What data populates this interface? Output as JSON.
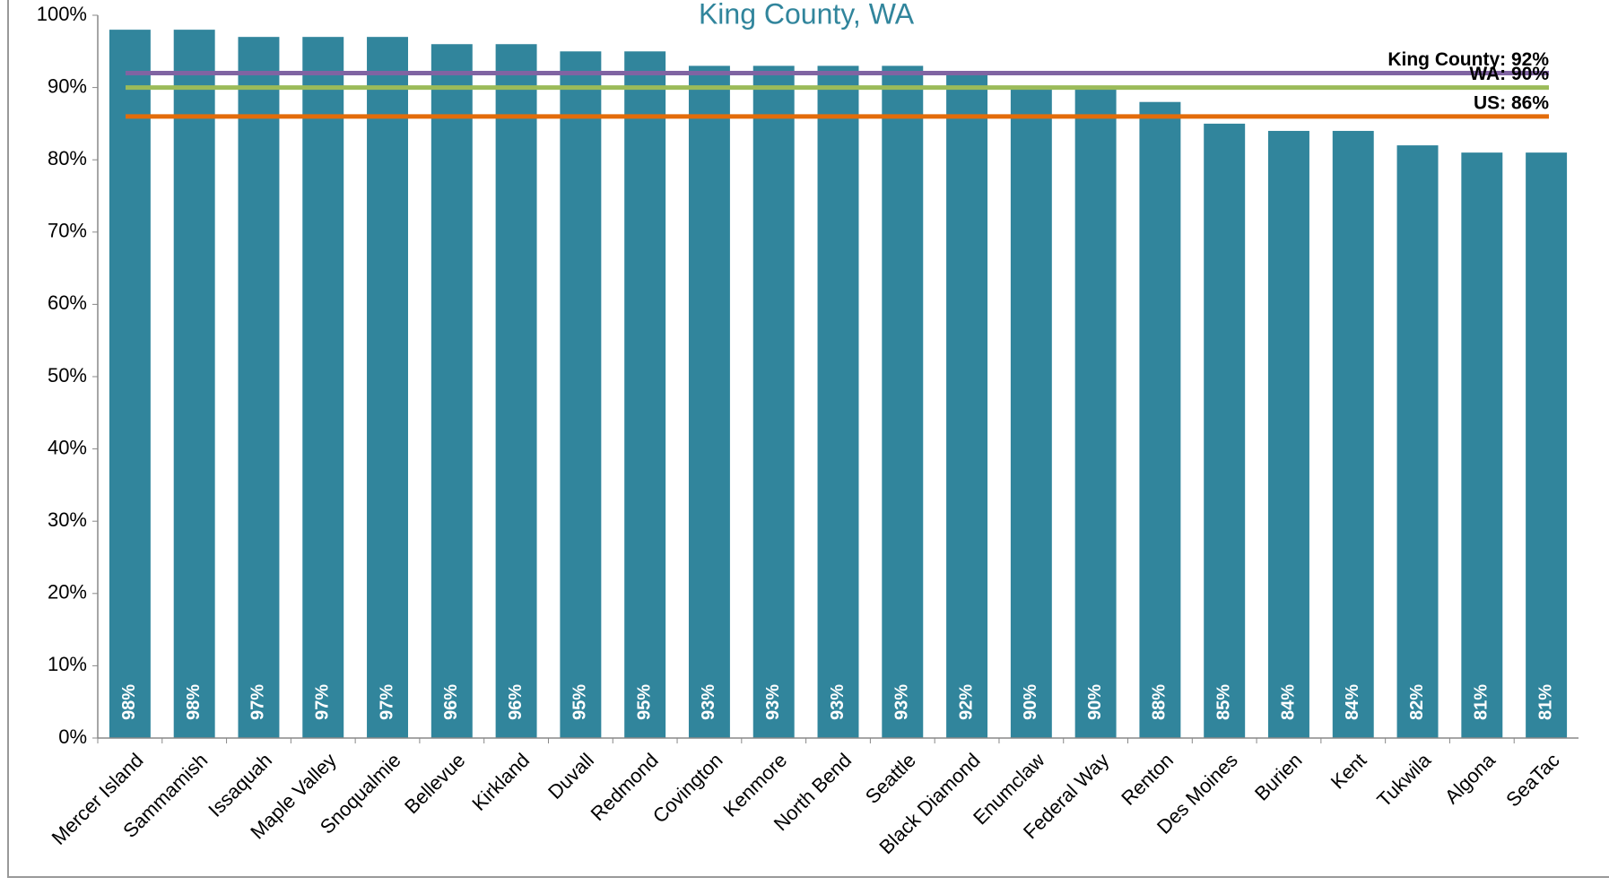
{
  "chart_data": {
    "type": "bar",
    "title": "King County, WA",
    "categories": [
      "Mercer Island",
      "Sammamish",
      "Issaquah",
      "Maple Valley",
      "Snoqualmie",
      "Bellevue",
      "Kirkland",
      "Duvall",
      "Redmond",
      "Covington",
      "Kenmore",
      "North Bend",
      "Seattle",
      "Black Diamond",
      "Enumclaw",
      "Federal Way",
      "Renton",
      "Des Moines",
      "Burien",
      "Kent",
      "Tukwila",
      "Algona",
      "SeaTac"
    ],
    "values": [
      98,
      98,
      97,
      97,
      97,
      96,
      96,
      95,
      95,
      93,
      93,
      93,
      93,
      92,
      90,
      90,
      88,
      85,
      84,
      84,
      82,
      81,
      81
    ],
    "value_labels": [
      "98%",
      "98%",
      "97%",
      "97%",
      "97%",
      "96%",
      "96%",
      "95%",
      "95%",
      "93%",
      "93%",
      "93%",
      "93%",
      "92%",
      "90%",
      "90%",
      "88%",
      "85%",
      "84%",
      "84%",
      "82%",
      "81%",
      "81%"
    ],
    "color": "#31859c",
    "ylim": [
      0,
      100
    ],
    "yticks": [
      {
        "value": 0,
        "label": "0%"
      },
      {
        "value": 10,
        "label": "10%"
      },
      {
        "value": 20,
        "label": "20%"
      },
      {
        "value": 30,
        "label": "30%"
      },
      {
        "value": 40,
        "label": "40%"
      },
      {
        "value": 50,
        "label": "50%"
      },
      {
        "value": 60,
        "label": "60%"
      },
      {
        "value": 70,
        "label": "70%"
      },
      {
        "value": 80,
        "label": "80%"
      },
      {
        "value": 90,
        "label": "90%"
      },
      {
        "value": 100,
        "label": "100%"
      }
    ],
    "grid": false,
    "reference_lines": [
      {
        "label": "King County: 92%",
        "value": 92,
        "color": "#8064a2"
      },
      {
        "label": "WA: 90%",
        "value": 90,
        "color": "#9bbb59"
      },
      {
        "label": "US: 86%",
        "value": 86,
        "color": "#e36c0a"
      }
    ]
  }
}
